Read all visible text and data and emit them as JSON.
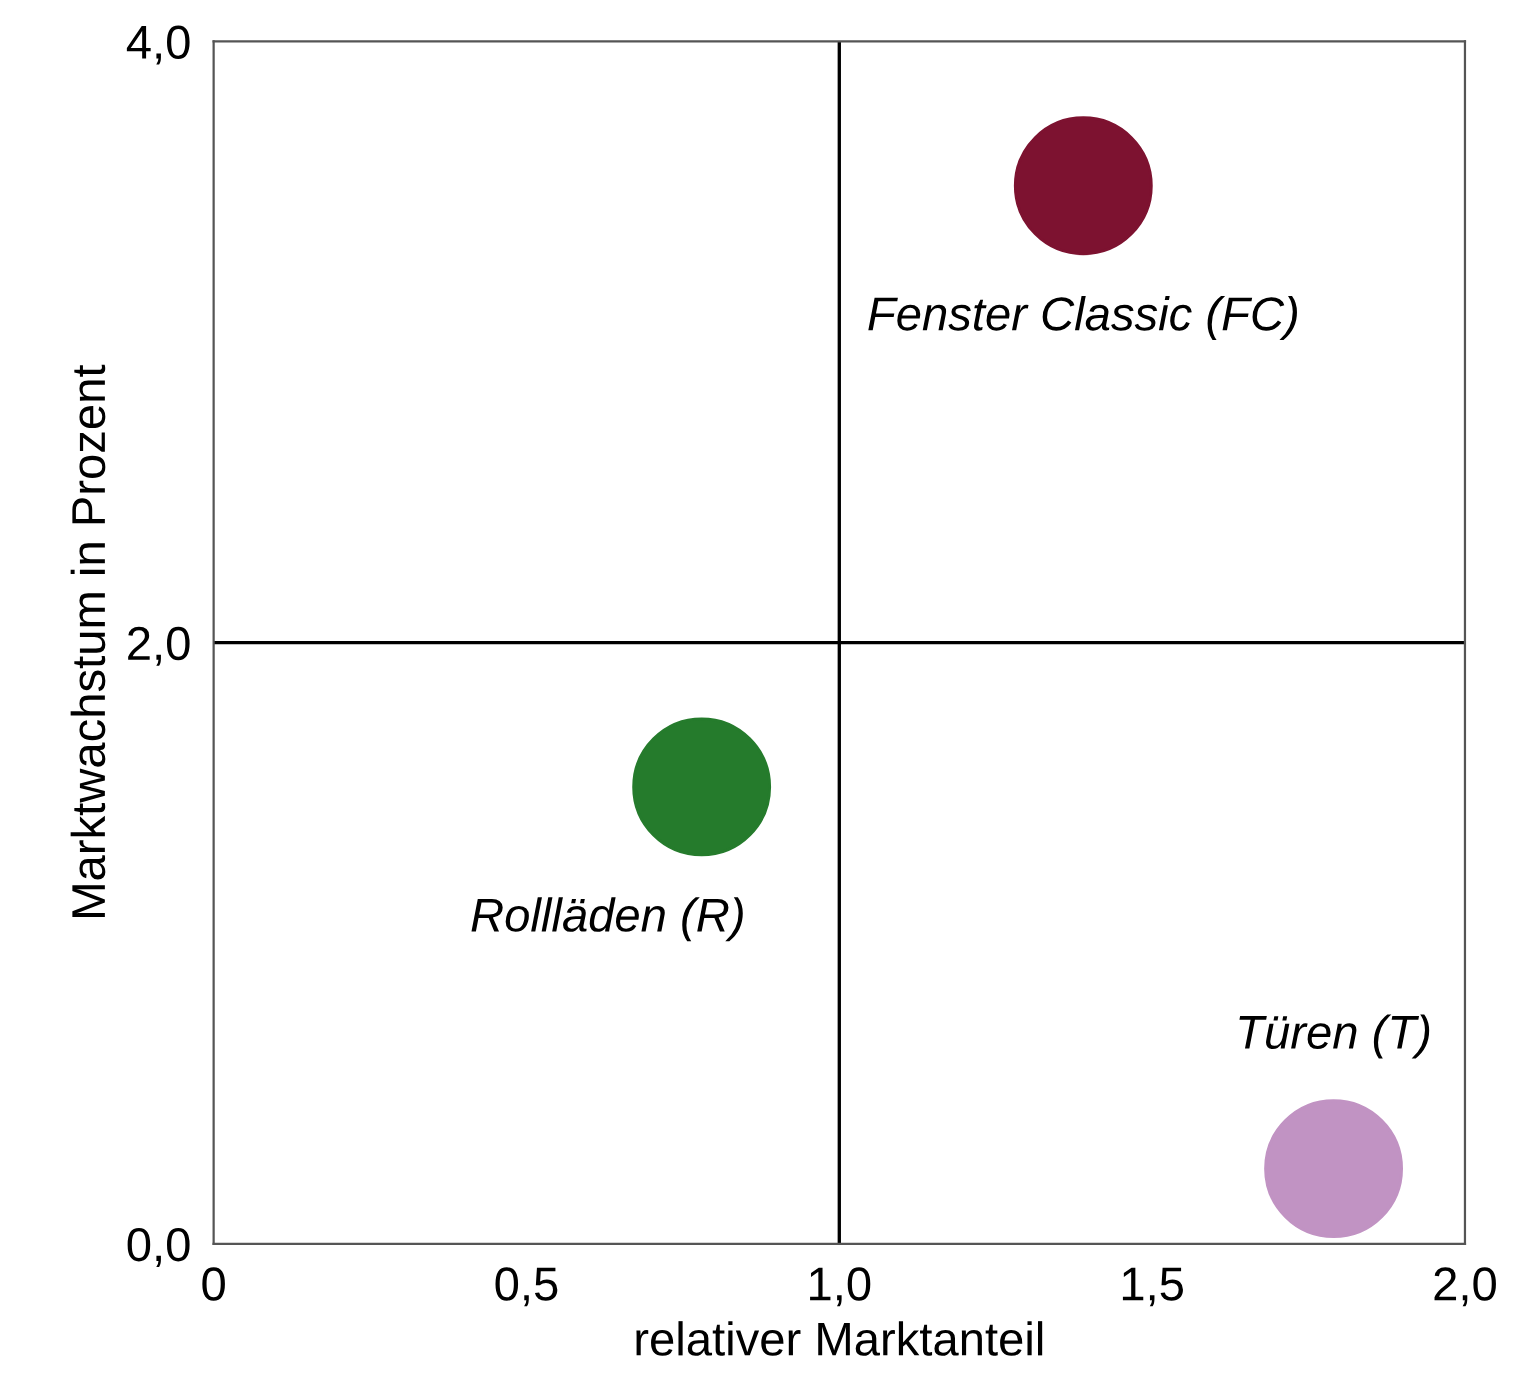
{
  "chart_data": {
    "type": "bubble",
    "xlabel": "relativer Marktanteil",
    "ylabel": "Marktwachstum in Prozent",
    "xlim": [
      0,
      2
    ],
    "xticks": [
      {
        "value": 0,
        "label": "0"
      },
      {
        "value": 0.5,
        "label": "0,5"
      },
      {
        "value": 1,
        "label": "1,0"
      },
      {
        "value": 1.5,
        "label": "1,5"
      },
      {
        "value": 2,
        "label": "2,0"
      }
    ],
    "ylim": [
      0,
      4
    ],
    "yticks": [
      {
        "value": 0,
        "label": "0,0"
      },
      {
        "value": 2,
        "label": "2,0"
      },
      {
        "value": 4,
        "label": "4,0"
      }
    ],
    "ref_lines": [
      {
        "axis": "x",
        "value": 1,
        "color": "#000000"
      },
      {
        "axis": "y",
        "value": 2,
        "color": "#000000"
      }
    ],
    "grid": false,
    "legend": false,
    "marker": "circle",
    "series": [
      {
        "name": "Fenster Classic (FC)",
        "color": "#7d1230",
        "x": [
          1.39
        ],
        "values": [
          3.52
        ],
        "sizes": [
          1
        ]
      },
      {
        "name": "Rollläden (R)",
        "color": "#257b2c",
        "x": [
          0.78
        ],
        "values": [
          1.52
        ],
        "sizes": [
          1
        ]
      },
      {
        "name": "Türen (T)",
        "color": "#c193c3",
        "x": [
          1.79
        ],
        "values": [
          0.25
        ],
        "sizes": [
          1
        ]
      }
    ]
  }
}
